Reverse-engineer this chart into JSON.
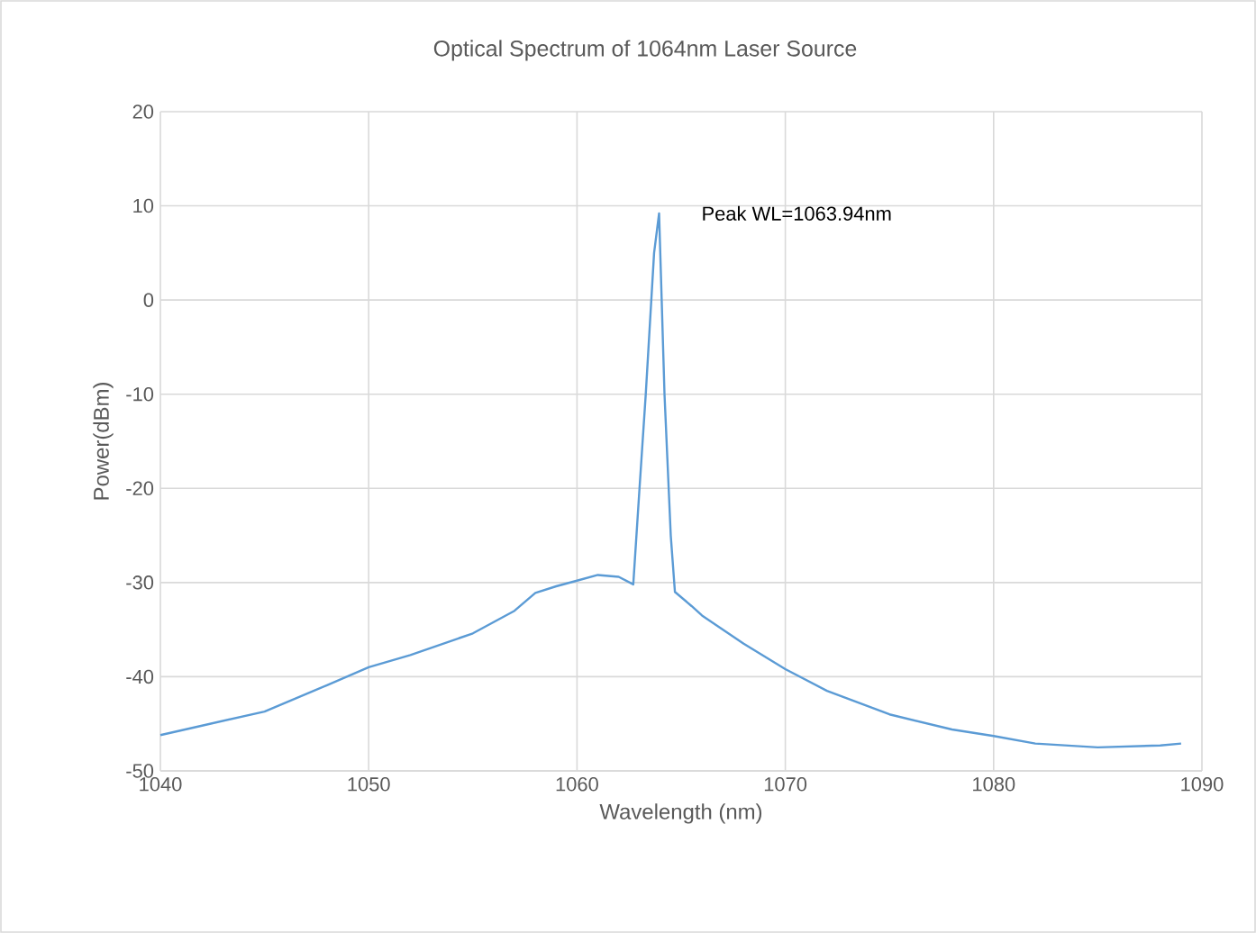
{
  "chart_data": {
    "type": "line",
    "title": "Optical Spectrum of 1064nm Laser Source",
    "xlabel": "Wavelength (nm)",
    "ylabel": "Power(dBm)",
    "xlim": [
      1040,
      1090
    ],
    "xticks": [
      1040,
      1050,
      1060,
      1070,
      1080,
      1090
    ],
    "ylim": [
      -50,
      20
    ],
    "yticks": [
      -50,
      -40,
      -30,
      -20,
      -10,
      0,
      10,
      20
    ],
    "grid": true,
    "legend": false,
    "marker": "none",
    "annotations": [
      {
        "text": "Peak WL=1063.94nm",
        "x": 1063.94,
        "y": 9.2
      }
    ],
    "series": [
      {
        "color": "#5b9bd5",
        "x": [
          1040,
          1042,
          1045,
          1048,
          1050,
          1052,
          1055,
          1057,
          1058,
          1059,
          1060,
          1061,
          1062,
          1062.7,
          1063.0,
          1063.3,
          1063.7,
          1063.94,
          1064.2,
          1064.5,
          1064.7,
          1065.5,
          1066,
          1068,
          1070,
          1072,
          1075,
          1078,
          1080,
          1082,
          1085,
          1088,
          1089
        ],
        "values": [
          -46.2,
          -45.2,
          -43.7,
          -40.9,
          -39.0,
          -37.7,
          -35.4,
          -33.0,
          -31.1,
          -30.4,
          -29.8,
          -29.2,
          -29.4,
          -30.2,
          -20,
          -10,
          5,
          9.2,
          -10,
          -25,
          -31,
          -32.5,
          -33.5,
          -36.5,
          -39.2,
          -41.5,
          -44.0,
          -45.6,
          -46.3,
          -47.1,
          -47.5,
          -47.3,
          -47.1
        ]
      }
    ]
  }
}
